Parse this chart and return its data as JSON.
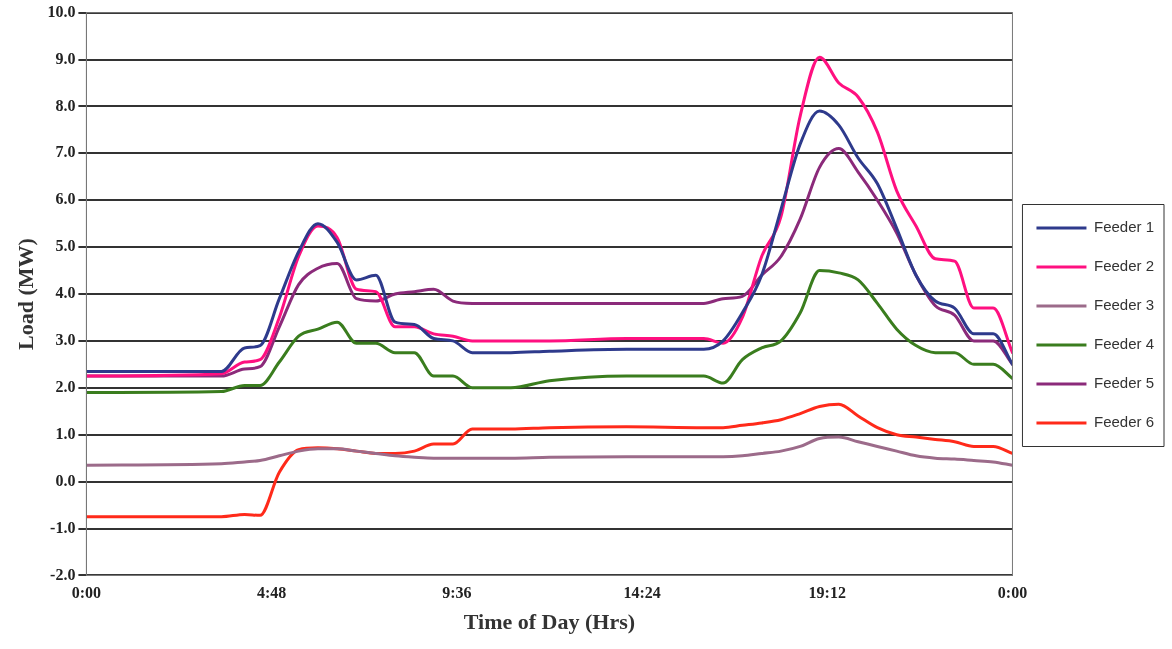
{
  "chart_data": {
    "type": "line",
    "xlabel": "Time of Day (Hrs)",
    "ylabel": "Load (MW)",
    "x": [
      0,
      3.5,
      4.1,
      4.5,
      5,
      5.5,
      6,
      6.5,
      7,
      7.5,
      8,
      8.5,
      9,
      9.5,
      10,
      11,
      12,
      14,
      16,
      16.5,
      17,
      17.5,
      18,
      18.5,
      19,
      19.5,
      20,
      20.5,
      21,
      21.5,
      22,
      22.5,
      23,
      23.5,
      24
    ],
    "series": [
      {
        "name": "Feeder 1",
        "color": "#2e3a8c",
        "values": [
          2.35,
          2.35,
          2.85,
          2.9,
          3.9,
          4.9,
          5.5,
          5.1,
          4.3,
          4.4,
          3.4,
          3.35,
          3.05,
          3.0,
          2.75,
          2.75,
          2.78,
          2.82,
          2.82,
          3.0,
          3.6,
          4.4,
          5.8,
          7.2,
          7.9,
          7.6,
          6.9,
          6.35,
          5.4,
          4.4,
          3.85,
          3.7,
          3.15,
          3.15,
          2.5
        ]
      },
      {
        "name": "Feeder 2",
        "color": "#ff1080",
        "values": [
          2.25,
          2.3,
          2.55,
          2.6,
          3.5,
          4.8,
          5.45,
          5.2,
          4.1,
          4.05,
          3.3,
          3.3,
          3.15,
          3.1,
          3.0,
          3.0,
          3.0,
          3.05,
          3.05,
          2.95,
          3.5,
          4.8,
          5.65,
          7.8,
          9.05,
          8.5,
          8.2,
          7.45,
          6.2,
          5.45,
          4.75,
          4.7,
          3.7,
          3.7,
          2.75
        ]
      },
      {
        "name": "Feeder 3",
        "color": "#9c6b8a",
        "values": [
          0.35,
          0.38,
          0.42,
          0.45,
          0.55,
          0.65,
          0.7,
          0.7,
          0.65,
          0.6,
          0.55,
          0.52,
          0.5,
          0.5,
          0.5,
          0.5,
          0.52,
          0.53,
          0.53,
          0.53,
          0.55,
          0.6,
          0.65,
          0.75,
          0.92,
          0.95,
          0.85,
          0.75,
          0.65,
          0.55,
          0.5,
          0.48,
          0.45,
          0.42,
          0.35
        ]
      },
      {
        "name": "Feeder 4",
        "color": "#3a7d1e",
        "values": [
          1.9,
          1.92,
          2.05,
          2.05,
          2.55,
          3.1,
          3.25,
          3.4,
          2.95,
          2.95,
          2.75,
          2.75,
          2.25,
          2.25,
          2.0,
          2.0,
          2.15,
          2.25,
          2.25,
          2.1,
          2.6,
          2.85,
          3.0,
          3.6,
          4.5,
          4.45,
          4.3,
          3.8,
          3.25,
          2.9,
          2.75,
          2.75,
          2.5,
          2.5,
          2.2
        ]
      },
      {
        "name": "Feeder 5",
        "color": "#8b2a7a",
        "values": [
          2.25,
          2.25,
          2.4,
          2.45,
          3.3,
          4.2,
          4.55,
          4.65,
          3.9,
          3.85,
          4.0,
          4.05,
          4.1,
          3.85,
          3.8,
          3.8,
          3.8,
          3.8,
          3.8,
          3.9,
          3.95,
          4.4,
          4.8,
          5.6,
          6.7,
          7.1,
          6.6,
          6.0,
          5.3,
          4.4,
          3.75,
          3.55,
          3.0,
          3.0,
          2.5
        ]
      },
      {
        "name": "Feeder 6",
        "color": "#ff2a1a",
        "values": [
          -0.75,
          -0.75,
          -0.7,
          -0.72,
          0.2,
          0.68,
          0.72,
          0.7,
          0.65,
          0.6,
          0.6,
          0.65,
          0.8,
          0.8,
          1.12,
          1.12,
          1.15,
          1.17,
          1.15,
          1.15,
          1.2,
          1.25,
          1.32,
          1.45,
          1.6,
          1.65,
          1.4,
          1.15,
          1.0,
          0.95,
          0.9,
          0.85,
          0.75,
          0.75,
          0.6
        ]
      }
    ],
    "xlim": [
      0,
      24
    ],
    "xticks": [
      {
        "value": 0,
        "label": "0:00"
      },
      {
        "value": 4.8,
        "label": "4:48"
      },
      {
        "value": 9.6,
        "label": "9:36"
      },
      {
        "value": 14.4,
        "label": "14:24"
      },
      {
        "value": 19.2,
        "label": "19:12"
      },
      {
        "value": 24,
        "label": "0:00"
      }
    ],
    "ylim": [
      -2,
      10
    ],
    "yticks": [
      {
        "value": -2,
        "label": "-2.0"
      },
      {
        "value": -1,
        "label": "-1.0"
      },
      {
        "value": 0,
        "label": "0.0"
      },
      {
        "value": 1,
        "label": "1.0"
      },
      {
        "value": 2,
        "label": "2.0"
      },
      {
        "value": 3,
        "label": "3.0"
      },
      {
        "value": 4,
        "label": "4.0"
      },
      {
        "value": 5,
        "label": "5.0"
      },
      {
        "value": 6,
        "label": "6.0"
      },
      {
        "value": 7,
        "label": "7.0"
      },
      {
        "value": 8,
        "label": "8.0"
      },
      {
        "value": 9,
        "label": "9.0"
      },
      {
        "value": 10,
        "label": "10.0"
      }
    ],
    "grid": "y",
    "legend": "right",
    "marker": "none",
    "line_style": "solid"
  }
}
